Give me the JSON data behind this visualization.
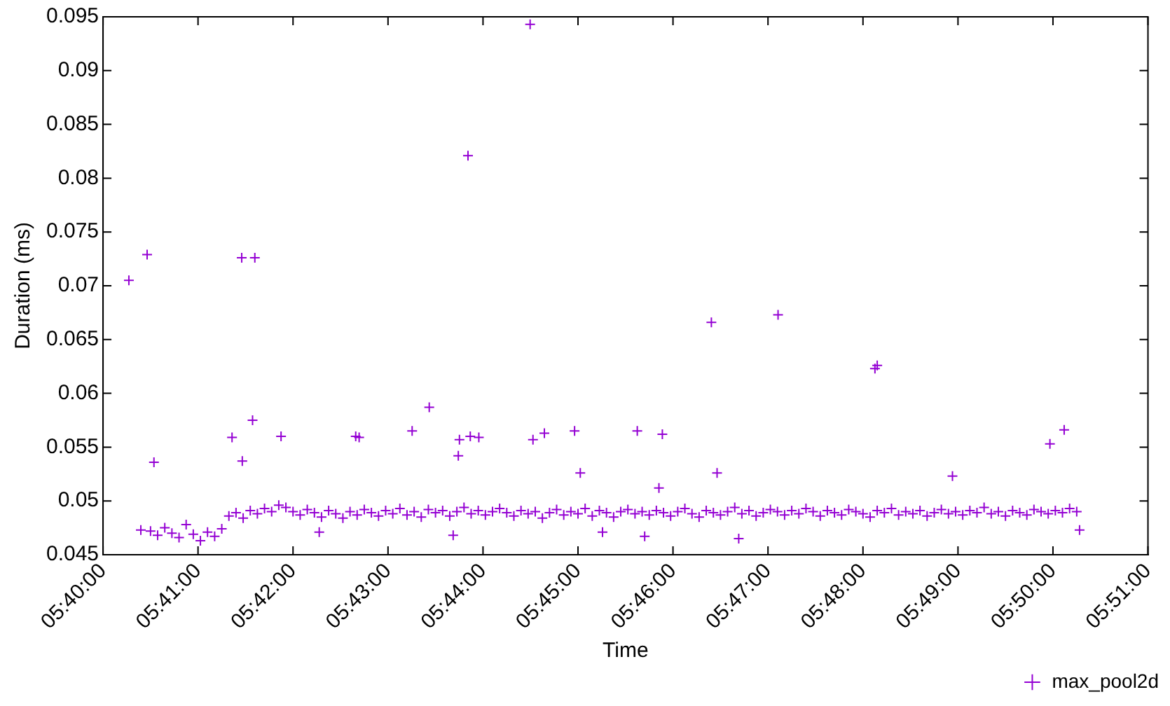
{
  "chart_data": {
    "type": "scatter",
    "xlabel": "Time",
    "ylabel": "Duration (ms)",
    "legend": "bottom right",
    "marker": "cross",
    "xlim": [
      5.666667,
      5.85
    ],
    "xticks": [
      {
        "value": 5.666667,
        "label": "05:40:00"
      },
      {
        "value": 5.683333,
        "label": "05:41:00"
      },
      {
        "value": 5.7,
        "label": "05:42:00"
      },
      {
        "value": 5.716667,
        "label": "05:43:00"
      },
      {
        "value": 5.733333,
        "label": "05:44:00"
      },
      {
        "value": 5.75,
        "label": "05:45:00"
      },
      {
        "value": 5.766667,
        "label": "05:46:00"
      },
      {
        "value": 5.783333,
        "label": "05:47:00"
      },
      {
        "value": 5.8,
        "label": "05:48:00"
      },
      {
        "value": 5.816667,
        "label": "05:49:00"
      },
      {
        "value": 5.833333,
        "label": "05:50:00"
      },
      {
        "value": 5.85,
        "label": "05:51:00"
      }
    ],
    "ylim": [
      0.045,
      0.095
    ],
    "yticks": [
      0.045,
      0.05,
      0.055,
      0.06,
      0.065,
      0.07,
      0.075,
      0.08,
      0.085,
      0.09,
      0.095
    ],
    "series": [
      {
        "name": "max_pool2d",
        "color": "#9400d3",
        "x": [
          5.6733,
          5.675,
          5.67625,
          5.6775,
          5.67875,
          5.68,
          5.68125,
          5.6825,
          5.68375,
          5.685,
          5.68625,
          5.6875,
          5.68875,
          5.69,
          5.69125,
          5.6925,
          5.69375,
          5.695,
          5.69625,
          5.6975,
          5.69875,
          5.7,
          5.70125,
          5.7025,
          5.70375,
          5.705,
          5.70625,
          5.7075,
          5.70875,
          5.71,
          5.71125,
          5.7125,
          5.71375,
          5.715,
          5.71625,
          5.7175,
          5.71875,
          5.72,
          5.72125,
          5.7225,
          5.72375,
          5.725,
          5.72625,
          5.7275,
          5.72875,
          5.73,
          5.73125,
          5.7325,
          5.73375,
          5.735,
          5.73625,
          5.7375,
          5.73875,
          5.74,
          5.74125,
          5.7425,
          5.74375,
          5.745,
          5.74625,
          5.7475,
          5.74875,
          5.75,
          5.75125,
          5.7525,
          5.75375,
          5.755,
          5.75625,
          5.7575,
          5.75875,
          5.76,
          5.76125,
          5.7625,
          5.76375,
          5.765,
          5.76625,
          5.7675,
          5.76875,
          5.77,
          5.77125,
          5.7725,
          5.77375,
          5.775,
          5.77625,
          5.7775,
          5.77875,
          5.78,
          5.78125,
          5.7825,
          5.78375,
          5.785,
          5.78625,
          5.7875,
          5.78875,
          5.79,
          5.79125,
          5.7925,
          5.79375,
          5.795,
          5.79625,
          5.7975,
          5.79875,
          5.8,
          5.80125,
          5.8025,
          5.80375,
          5.805,
          5.80625,
          5.8075,
          5.80875,
          5.81,
          5.81125,
          5.8125,
          5.81375,
          5.815,
          5.81625,
          5.8175,
          5.81875,
          5.82,
          5.82125,
          5.8225,
          5.82375,
          5.825,
          5.82625,
          5.8275,
          5.82875,
          5.83,
          5.83125,
          5.8325,
          5.83375,
          5.835,
          5.83625,
          5.8375,
          5.6712,
          5.6744,
          5.6756,
          5.691,
          5.6933,
          5.6893,
          5.6911,
          5.6929,
          5.6979,
          5.711,
          5.7116,
          5.7209,
          5.7239,
          5.729,
          5.7292,
          5.7307,
          5.7311,
          5.7326,
          5.7416,
          5.7421,
          5.7441,
          5.7494,
          5.7504,
          5.7604,
          5.7648,
          5.7734,
          5.7851,
          5.8021,
          5.8025,
          5.8328,
          5.8353,
          5.7744,
          5.8157,
          5.7642,
          5.7543,
          5.7617,
          5.7782,
          5.838,
          5.7046,
          5.7281
        ],
        "values": [
          0.0473,
          0.0472,
          0.0468,
          0.0475,
          0.047,
          0.0466,
          0.0478,
          0.0469,
          0.0463,
          0.0471,
          0.0467,
          0.0474,
          0.0486,
          0.0489,
          0.0484,
          0.0491,
          0.0488,
          0.0493,
          0.049,
          0.0496,
          0.0494,
          0.049,
          0.0487,
          0.0492,
          0.0489,
          0.0485,
          0.0491,
          0.0488,
          0.0484,
          0.049,
          0.0487,
          0.0492,
          0.0489,
          0.0486,
          0.0491,
          0.0488,
          0.0493,
          0.0487,
          0.049,
          0.0485,
          0.0492,
          0.0489,
          0.0491,
          0.0486,
          0.049,
          0.0494,
          0.0488,
          0.0491,
          0.0487,
          0.049,
          0.0493,
          0.0489,
          0.0486,
          0.0491,
          0.0488,
          0.049,
          0.0484,
          0.0489,
          0.0492,
          0.0487,
          0.049,
          0.0488,
          0.0493,
          0.0486,
          0.0491,
          0.0489,
          0.0485,
          0.049,
          0.0492,
          0.0488,
          0.049,
          0.0487,
          0.0491,
          0.0489,
          0.0486,
          0.049,
          0.0493,
          0.0488,
          0.0485,
          0.0491,
          0.0489,
          0.0487,
          0.049,
          0.0494,
          0.0488,
          0.0491,
          0.0486,
          0.0489,
          0.0492,
          0.049,
          0.0487,
          0.0491,
          0.0488,
          0.0493,
          0.049,
          0.0486,
          0.0491,
          0.0489,
          0.0487,
          0.0492,
          0.049,
          0.0488,
          0.0485,
          0.0491,
          0.0489,
          0.0493,
          0.0487,
          0.049,
          0.0488,
          0.0491,
          0.0486,
          0.0489,
          0.0492,
          0.0488,
          0.049,
          0.0487,
          0.0491,
          0.0489,
          0.0494,
          0.0488,
          0.049,
          0.0486,
          0.0491,
          0.0489,
          0.0487,
          0.0492,
          0.049,
          0.0488,
          0.0491,
          0.0489,
          0.0493,
          0.049,
          0.0705,
          0.0729,
          0.0536,
          0.0726,
          0.0726,
          0.0559,
          0.0537,
          0.0575,
          0.056,
          0.056,
          0.0559,
          0.0565,
          0.0587,
          0.0542,
          0.0557,
          0.0821,
          0.056,
          0.0559,
          0.0943,
          0.0557,
          0.0563,
          0.0565,
          0.0526,
          0.0565,
          0.0562,
          0.0666,
          0.0673,
          0.0623,
          0.0626,
          0.0553,
          0.0566,
          0.0526,
          0.0523,
          0.0512,
          0.0471,
          0.0467,
          0.0465,
          0.0473,
          0.0471,
          0.0468
        ]
      }
    ]
  }
}
